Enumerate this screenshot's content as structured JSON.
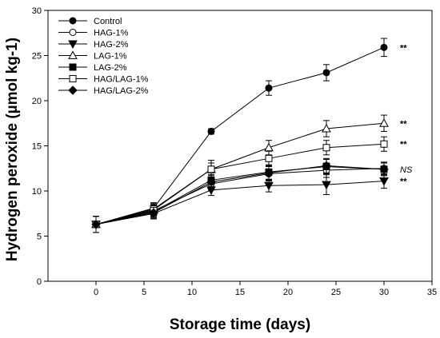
{
  "chart_data": {
    "type": "line",
    "xlabel": "Storage time (days)",
    "ylabel": "Hydrogen peroxide (µmol kg-1)",
    "xlim": [
      -5,
      35
    ],
    "ylim": [
      0,
      30
    ],
    "xticks": [
      0,
      5,
      10,
      15,
      20,
      25,
      30,
      35
    ],
    "yticks": [
      0,
      5,
      10,
      15,
      20,
      25,
      30
    ],
    "x": [
      0,
      6,
      12,
      18,
      24,
      30
    ],
    "legend_position": "top-left",
    "series": [
      {
        "name": "Control",
        "marker": "circle-filled",
        "values": [
          6.3,
          8.1,
          16.6,
          21.4,
          23.1,
          25.9
        ],
        "errors": [
          0.9,
          0.6,
          0.3,
          0.8,
          0.9,
          1.0
        ],
        "annotation": "**"
      },
      {
        "name": "HAG-1%",
        "marker": "circle-open",
        "values": [
          6.3,
          7.8,
          10.8,
          11.9,
          12.3,
          12.5
        ],
        "errors": [
          0.9,
          0.6,
          0.7,
          0.8,
          0.8,
          0.7
        ],
        "annotation": ""
      },
      {
        "name": "HAG-2%",
        "marker": "triangle-down-filled",
        "values": [
          6.3,
          7.5,
          10.1,
          10.6,
          10.7,
          11.1
        ],
        "errors": [
          0.9,
          0.6,
          0.6,
          0.7,
          1.1,
          0.8
        ],
        "annotation": "**"
      },
      {
        "name": "LAG-1%",
        "marker": "triangle-up-open",
        "values": [
          6.3,
          7.9,
          12.4,
          14.8,
          16.9,
          17.5
        ],
        "errors": [
          0.9,
          0.6,
          1.0,
          0.8,
          0.9,
          0.9
        ],
        "annotation": "**"
      },
      {
        "name": "LAG-2%",
        "marker": "square-filled",
        "values": [
          6.3,
          7.7,
          11.2,
          12.1,
          12.7,
          12.4
        ],
        "errors": [
          0.9,
          0.6,
          0.8,
          0.8,
          0.8,
          0.7
        ],
        "annotation": "NS"
      },
      {
        "name": "HAG/LAG-1%",
        "marker": "square-open",
        "values": [
          6.3,
          8.0,
          12.4,
          13.6,
          14.8,
          15.2
        ],
        "errors": [
          0.9,
          0.6,
          0.7,
          0.8,
          0.8,
          0.8
        ],
        "annotation": "**"
      },
      {
        "name": "HAG/LAG-2%",
        "marker": "diamond-filled",
        "values": [
          6.3,
          7.6,
          11.0,
          12.0,
          12.8,
          12.4
        ],
        "errors": [
          0.9,
          0.6,
          0.8,
          0.8,
          0.8,
          0.7
        ],
        "annotation": ""
      }
    ]
  }
}
